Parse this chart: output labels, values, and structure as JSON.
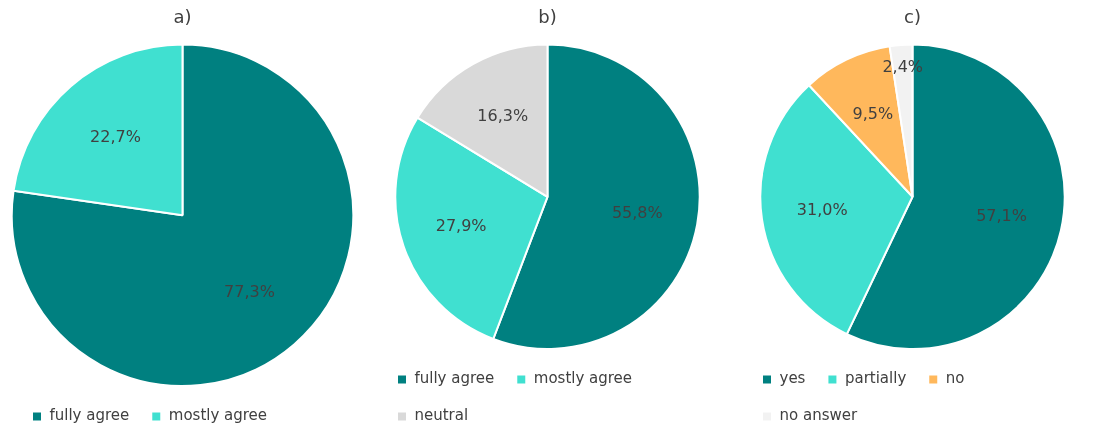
{
  "chart_data": [
    {
      "type": "pie",
      "title": "a)",
      "categories": [
        "fully agree",
        "mostly agree"
      ],
      "values": [
        77.3,
        22.7
      ],
      "value_labels": [
        "77,3%",
        "22,7%"
      ],
      "colors": [
        "#008080",
        "#40e0d0"
      ],
      "legend": "bottom"
    },
    {
      "type": "pie",
      "title": "b)",
      "categories": [
        "fully agree",
        "mostly agree",
        "neutral"
      ],
      "values": [
        55.8,
        27.9,
        16.3
      ],
      "value_labels": [
        "55,8%",
        "27,9%",
        "16,3%"
      ],
      "colors": [
        "#008080",
        "#40e0d0",
        "#d9d9d9"
      ],
      "legend": "bottom"
    },
    {
      "type": "pie",
      "title": "c)",
      "categories": [
        "yes",
        "partially",
        "no",
        "no answer"
      ],
      "values": [
        57.1,
        31.0,
        9.5,
        2.4
      ],
      "value_labels": [
        "57,1%",
        "31,0%",
        "9,5%",
        "2,4%"
      ],
      "colors": [
        "#008080",
        "#40e0d0",
        "#ffb85c",
        "#f2f2f2"
      ],
      "legend": "bottom"
    }
  ]
}
